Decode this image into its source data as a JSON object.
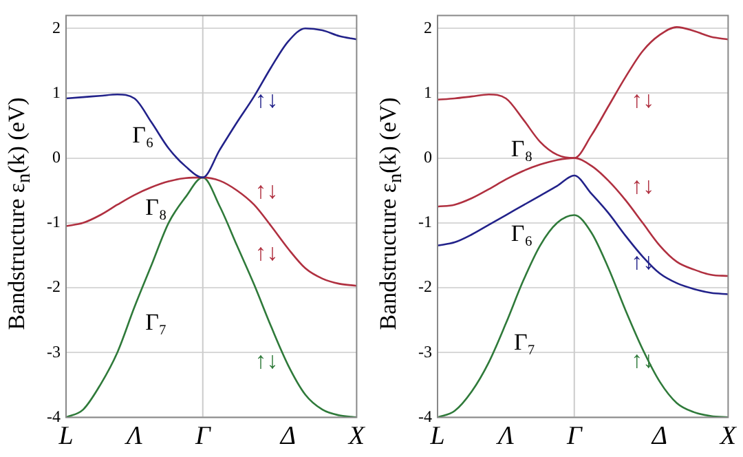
{
  "chart_data": [
    {
      "type": "line",
      "ylabel": "Bandstructure ε$_{n}$(k) (eV)",
      "categories": [
        "L",
        null,
        null,
        null,
        "Λ",
        null,
        null,
        null,
        "Γ",
        null,
        null,
        null,
        null,
        "Δ",
        null,
        null,
        null,
        "X"
      ],
      "series": [
        {
          "color": "#22228a",
          "values": [
            0.92,
            0.94,
            0.96,
            0.98,
            0.92,
            0.55,
            0.15,
            -0.13,
            -0.3,
            0.13,
            0.55,
            0.95,
            1.4,
            1.8,
            2.0,
            1.97,
            1.88,
            1.83
          ]
        },
        {
          "color": "#b03040",
          "values": [
            -1.05,
            -1.0,
            -0.88,
            -0.72,
            -0.57,
            -0.45,
            -0.36,
            -0.31,
            -0.3,
            -0.35,
            -0.5,
            -0.72,
            -1.05,
            -1.4,
            -1.7,
            -1.86,
            -1.94,
            -1.97
          ]
        },
        {
          "color": "#2f7a3a",
          "values": [
            -4.0,
            -3.88,
            -3.5,
            -3.0,
            -2.3,
            -1.65,
            -1.0,
            -0.6,
            -0.3,
            -0.75,
            -1.35,
            -1.95,
            -2.6,
            -3.2,
            -3.65,
            -3.88,
            -3.97,
            -4.0
          ]
        }
      ],
      "ylim": [
        -4,
        2.2
      ],
      "yticks": [
        -4,
        -3,
        -2,
        -1,
        0,
        1,
        2
      ],
      "grid": "y",
      "legend": false,
      "marker": "none",
      "line_style": "solid",
      "ref_lines": [
        {
          "axis": "x",
          "value": "Γ",
          "color": "#cccccc"
        }
      ],
      "annotations": [
        "Γ₆",
        "Γ₈",
        "Γ₇",
        "↑↓",
        "↑↓",
        "↑↓",
        "↑↓"
      ]
    },
    {
      "type": "line",
      "ylabel": "Bandstructure ε$_{n}$(k) (eV)",
      "categories": [
        "L",
        null,
        null,
        null,
        "Λ",
        null,
        null,
        null,
        "Γ",
        null,
        null,
        null,
        null,
        "Δ",
        null,
        null,
        null,
        "X"
      ],
      "series": [
        {
          "color": "#b03040",
          "values": [
            0.9,
            0.92,
            0.95,
            0.98,
            0.92,
            0.6,
            0.25,
            0.05,
            0.0,
            0.35,
            0.8,
            1.25,
            1.65,
            1.9,
            2.02,
            1.96,
            1.87,
            1.83
          ]
        },
        {
          "color": "#b03040",
          "values": [
            -0.75,
            -0.72,
            -0.62,
            -0.48,
            -0.33,
            -0.2,
            -0.1,
            -0.03,
            0.0,
            -0.12,
            -0.35,
            -0.65,
            -1.0,
            -1.35,
            -1.6,
            -1.72,
            -1.8,
            -1.82
          ]
        },
        {
          "color": "#22228a",
          "values": [
            -1.35,
            -1.3,
            -1.18,
            -1.03,
            -0.88,
            -0.73,
            -0.58,
            -0.43,
            -0.27,
            -0.55,
            -0.85,
            -1.2,
            -1.52,
            -1.78,
            -1.93,
            -2.02,
            -2.08,
            -2.1
          ]
        },
        {
          "color": "#2f7a3a",
          "values": [
            -4.0,
            -3.9,
            -3.6,
            -3.15,
            -2.55,
            -1.9,
            -1.35,
            -1.0,
            -0.88,
            -1.15,
            -1.7,
            -2.35,
            -2.95,
            -3.45,
            -3.78,
            -3.92,
            -3.98,
            -4.0
          ]
        }
      ],
      "ylim": [
        -4,
        2.2
      ],
      "yticks": [
        -4,
        -3,
        -2,
        -1,
        0,
        1,
        2
      ],
      "grid": "y",
      "legend": false,
      "marker": "none",
      "line_style": "solid",
      "ref_lines": [
        {
          "axis": "x",
          "value": "Γ",
          "color": "#cccccc"
        }
      ],
      "annotations": [
        "Γ₈",
        "Γ₆",
        "Γ₇",
        "↑↓",
        "↑↓",
        "↑↓",
        "↑↓"
      ]
    }
  ]
}
